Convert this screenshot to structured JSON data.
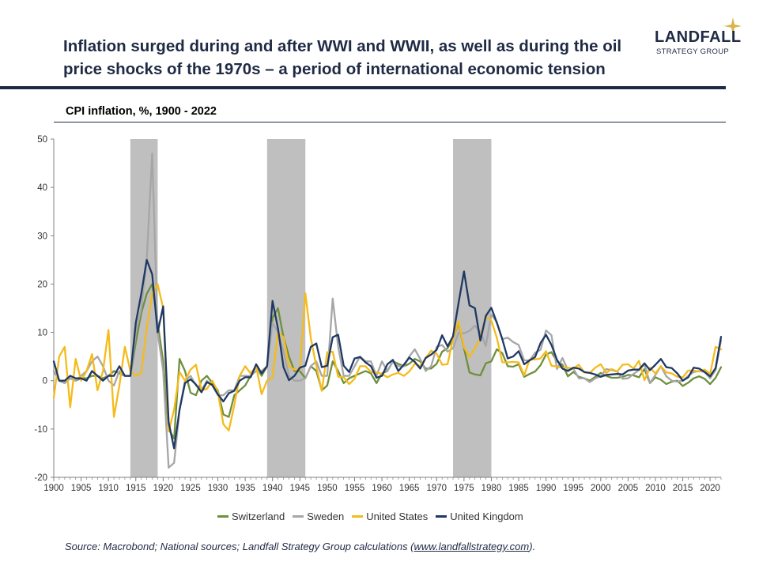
{
  "header": {
    "title": "Inflation surged during and after WWI and WWII, as well as during the oil price shocks of the 1970s – a period of international economic tension",
    "subtitle": "CPI inflation, %, 1900 - 2022"
  },
  "logo": {
    "name": "LANDFALL",
    "tagline": "STRATEGY GROUP",
    "icon": "star-icon",
    "color": "#1f2a44",
    "star_color": "#d9b44a"
  },
  "source": {
    "prefix": "Source: Macrobond; National sources; Landfall Strategy Group calculations (",
    "link": "www.landfallstrategy.com",
    "suffix": ")."
  },
  "chart_data": {
    "type": "line",
    "title": "CPI inflation, %, 1900 - 2022",
    "xlabel": "",
    "ylabel": "",
    "xlim": [
      1900,
      2022
    ],
    "ylim": [
      -20,
      50
    ],
    "yticks": [
      -20,
      -10,
      0,
      10,
      20,
      30,
      40,
      50
    ],
    "xticks": [
      1900,
      1905,
      1910,
      1915,
      1920,
      1925,
      1930,
      1935,
      1940,
      1945,
      1950,
      1955,
      1960,
      1965,
      1970,
      1975,
      1980,
      1985,
      1990,
      1995,
      2000,
      2005,
      2010,
      2015,
      2020
    ],
    "legend": "bottom",
    "grid": false,
    "shaded_periods": [
      [
        1914,
        1919
      ],
      [
        1939,
        1946
      ],
      [
        1973,
        1980
      ]
    ],
    "x": [
      1900,
      1901,
      1902,
      1903,
      1904,
      1905,
      1906,
      1907,
      1908,
      1909,
      1910,
      1911,
      1912,
      1913,
      1914,
      1915,
      1916,
      1917,
      1918,
      1919,
      1920,
      1921,
      1922,
      1923,
      1924,
      1925,
      1926,
      1927,
      1928,
      1929,
      1930,
      1931,
      1932,
      1933,
      1934,
      1935,
      1936,
      1937,
      1938,
      1939,
      1940,
      1941,
      1942,
      1943,
      1944,
      1945,
      1946,
      1947,
      1948,
      1949,
      1950,
      1951,
      1952,
      1953,
      1954,
      1955,
      1956,
      1957,
      1958,
      1959,
      1960,
      1961,
      1962,
      1963,
      1964,
      1965,
      1966,
      1967,
      1968,
      1969,
      1970,
      1971,
      1972,
      1973,
      1974,
      1975,
      1976,
      1977,
      1978,
      1979,
      1980,
      1981,
      1982,
      1983,
      1984,
      1985,
      1986,
      1987,
      1988,
      1989,
      1990,
      1991,
      1992,
      1993,
      1994,
      1995,
      1996,
      1997,
      1998,
      1999,
      2000,
      2001,
      2002,
      2003,
      2004,
      2005,
      2006,
      2007,
      2008,
      2009,
      2010,
      2011,
      2012,
      2013,
      2014,
      2015,
      2016,
      2017,
      2018,
      2019,
      2020,
      2021,
      2022
    ],
    "series": [
      {
        "name": "Switzerland",
        "color": "#6e8f3c",
        "values": [
          2,
          0,
          -0.5,
          0.5,
          0,
          0.5,
          0.5,
          1,
          1,
          0.5,
          1,
          2,
          1.5,
          1,
          1,
          8,
          14,
          18,
          20,
          12,
          4,
          -10,
          -12,
          4.5,
          2,
          -2.5,
          -3,
          0,
          1,
          -0.5,
          -2,
          -7,
          -7.5,
          -3,
          -2,
          -1,
          1,
          3,
          1,
          3,
          13,
          15,
          9,
          5,
          2,
          2,
          0.5,
          3,
          2,
          -2,
          -1,
          4,
          2,
          -0.5,
          0.5,
          1,
          1.5,
          2,
          1.5,
          -0.5,
          1.5,
          2,
          4,
          3.5,
          3,
          3.5,
          4.5,
          4,
          2.5,
          2.5,
          3.5,
          6,
          6.7,
          8.7,
          12,
          6.7,
          1.7,
          1.3,
          1.1,
          3.6,
          4,
          6.5,
          5.7,
          3,
          2.9,
          3.4,
          0.8,
          1.4,
          1.9,
          3.2,
          5.4,
          5.9,
          4,
          3.3,
          0.9,
          1.8,
          0.8,
          0.5,
          0,
          0.8,
          1.6,
          1,
          0.6,
          0.6,
          0.8,
          1.2,
          1.1,
          0.7,
          2.4,
          -0.5,
          0.7,
          0.2,
          -0.7,
          -0.2,
          0,
          -1.1,
          -0.4,
          0.5,
          0.9,
          0.4,
          -0.7,
          0.6,
          2.8
        ]
      },
      {
        "name": "Sweden",
        "color": "#a6a6a6",
        "values": [
          2,
          0,
          -0.5,
          0.5,
          0,
          1,
          2,
          4,
          5,
          3,
          0,
          -1,
          2,
          1,
          1,
          10,
          15,
          25,
          47,
          10,
          2,
          -18,
          -17,
          -6,
          0,
          1,
          -1,
          -2,
          0,
          -1,
          -3,
          -3,
          -2,
          -2,
          1,
          1,
          1,
          2,
          2,
          3,
          12,
          10,
          6,
          1,
          0,
          0,
          0.5,
          3,
          4,
          1,
          1,
          17,
          7,
          1,
          1,
          3,
          5,
          4,
          4,
          1,
          4,
          2,
          4,
          3,
          3,
          5,
          6.5,
          4.5,
          2,
          3,
          7,
          7.4,
          6,
          6.7,
          9.9,
          9.8,
          10.3,
          11.4,
          10,
          7.2,
          13.7,
          12.1,
          8.6,
          8.9,
          8,
          7.4,
          4.2,
          4.2,
          5.8,
          6.4,
          10.4,
          9.4,
          2.4,
          4.7,
          2.2,
          2.5,
          0.5,
          0.5,
          -0.3,
          0.5,
          0.9,
          2.4,
          2.2,
          1.9,
          0.4,
          0.5,
          1.4,
          2.2,
          3.4,
          -0.5,
          1.2,
          3,
          0.9,
          0,
          -0.2,
          0,
          1,
          1.8,
          2,
          1.8,
          0.5,
          2.2,
          8.4
        ]
      },
      {
        "name": "United States",
        "color": "#f5bb1b",
        "values": [
          -3.5,
          5,
          7,
          -5.5,
          4.5,
          0,
          2,
          5.5,
          -2,
          2,
          10.5,
          -7.5,
          -1,
          7,
          2,
          1,
          1.5,
          11,
          18,
          20,
          15,
          -10.5,
          -6,
          1.8,
          0,
          2.3,
          3.3,
          -2,
          -1.7,
          0,
          -2.3,
          -9,
          -10.3,
          -5.1,
          1,
          3,
          1.5,
          3,
          -2.8,
          0,
          0.7,
          10,
          9,
          3,
          2.3,
          2.2,
          18.1,
          8.8,
          3,
          -2.1,
          5.9,
          6,
          0.8,
          0.7,
          -0.7,
          0.4,
          3,
          3,
          1.8,
          1.7,
          1.4,
          0.7,
          1.3,
          1.6,
          1,
          1.9,
          3.5,
          3,
          4.7,
          6.2,
          5.6,
          3.3,
          3.4,
          8.7,
          12.3,
          6.9,
          4.9,
          6.7,
          9,
          13.3,
          12.5,
          8.9,
          3.8,
          3.8,
          3.9,
          3.8,
          1.1,
          4.4,
          4.4,
          4.6,
          6.1,
          3.1,
          2.9,
          2.7,
          2.7,
          2.5,
          3.3,
          1.7,
          1.6,
          2.7,
          3.4,
          1.6,
          2.4,
          1.9,
          3.3,
          3.4,
          2.5,
          4.1,
          0.1,
          2.7,
          1.5,
          3,
          1.7,
          1.5,
          0.8,
          0.7,
          2.1,
          2.1,
          1.9,
          2.3,
          1.4,
          7,
          6.5
        ]
      },
      {
        "name": "United Kingdom",
        "color": "#1f3864",
        "values": [
          4,
          0,
          0,
          1,
          0.5,
          0.5,
          0,
          2,
          1,
          0,
          1,
          1,
          3,
          1,
          1,
          12,
          18,
          25,
          22,
          10,
          15.4,
          -8.6,
          -14,
          -6,
          -0.5,
          0.3,
          -0.8,
          -2.4,
          -0.3,
          -0.9,
          -2.8,
          -4.3,
          -2.6,
          -2.1,
          0,
          0.7,
          0.7,
          3.4,
          1.5,
          3,
          16.5,
          10.8,
          2.8,
          0.1,
          1,
          2.7,
          3.1,
          7,
          7.7,
          2.8,
          3.1,
          9,
          9.5,
          3.1,
          1.8,
          4.6,
          4.9,
          3.8,
          3,
          0.6,
          1,
          3.4,
          4.3,
          2,
          3.3,
          4.8,
          3.9,
          2.5,
          4.7,
          5.4,
          6.4,
          9.4,
          7.1,
          9.2,
          16,
          22.6,
          15.6,
          15,
          8.3,
          13.4,
          15.1,
          12,
          8.6,
          4.6,
          5,
          6.1,
          3.4,
          4.2,
          4.9,
          7.8,
          9.5,
          7.4,
          4.3,
          2.5,
          2,
          2.7,
          2.5,
          1.8,
          1.6,
          1.3,
          0.8,
          1.2,
          1.3,
          1.4,
          1.3,
          2.1,
          2.3,
          2.3,
          3.6,
          2.2,
          3.3,
          4.5,
          2.8,
          2.6,
          1.5,
          0,
          0.7,
          2.7,
          2.5,
          1.8,
          0.9,
          2.6,
          9.1
        ]
      }
    ]
  }
}
